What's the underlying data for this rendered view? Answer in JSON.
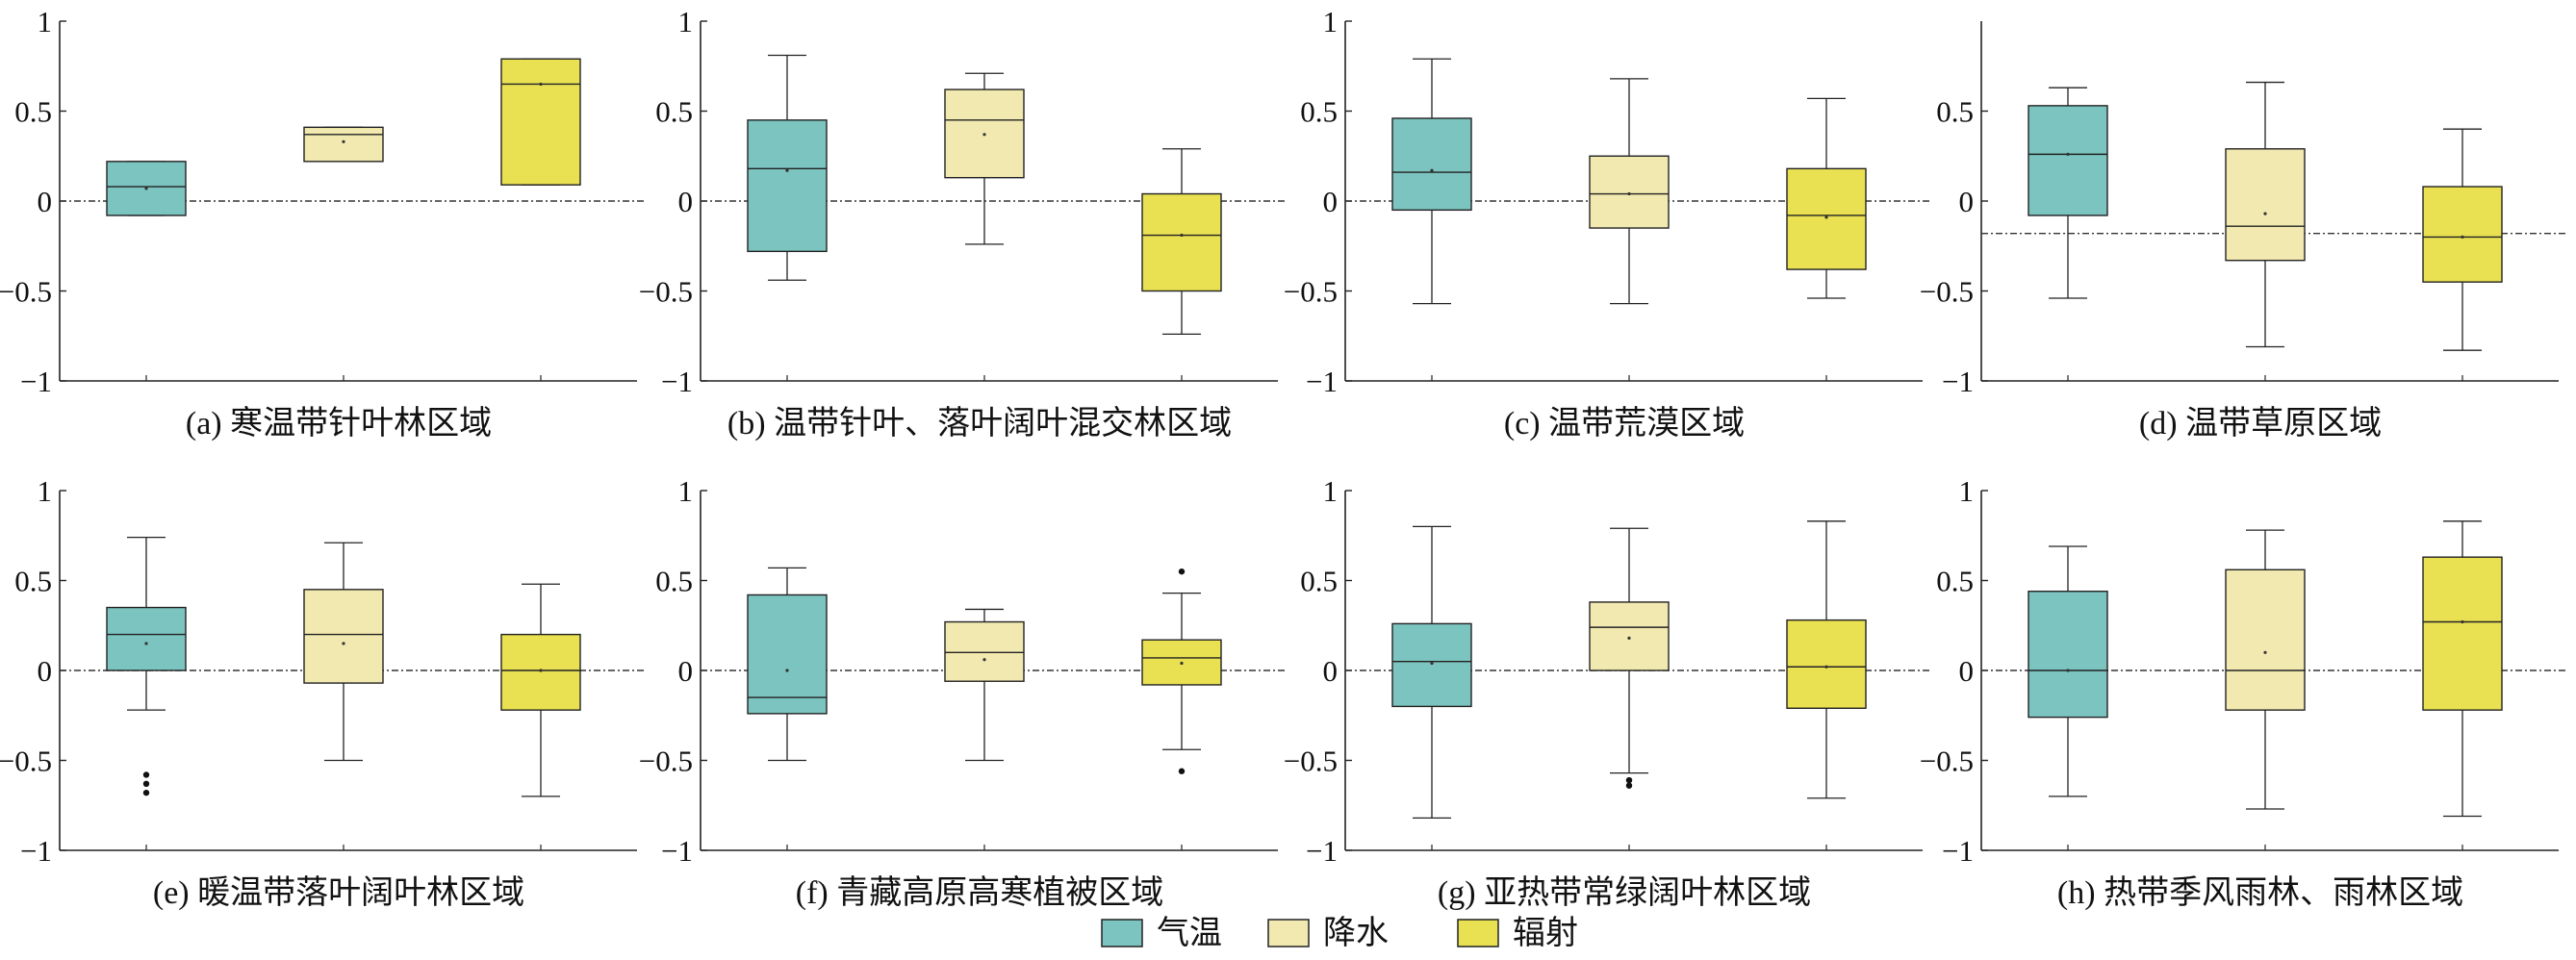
{
  "chart_data": [
    {
      "type": "box",
      "caption": "(a) 寒温带针叶林区域",
      "ylim": [
        -1,
        1
      ],
      "yticks": [
        1,
        0.5,
        0,
        -0.5,
        -1
      ],
      "ytick_labels": [
        "1",
        "0.5",
        "0",
        "−0.5",
        "−1"
      ],
      "reference_line": 0,
      "series": [
        {
          "name": "气温",
          "whisker_low": -0.08,
          "q1": -0.08,
          "median": 0.08,
          "q3": 0.22,
          "whisker_high": 0.22,
          "mean": 0.07,
          "outliers": []
        },
        {
          "name": "降水",
          "whisker_low": 0.22,
          "q1": 0.22,
          "median": 0.37,
          "q3": 0.41,
          "whisker_high": 0.41,
          "mean": 0.33,
          "outliers": []
        },
        {
          "name": "辐射",
          "whisker_low": 0.09,
          "q1": 0.09,
          "median": 0.65,
          "q3": 0.79,
          "whisker_high": 0.79,
          "mean": 0.65,
          "outliers": []
        }
      ]
    },
    {
      "type": "box",
      "caption": "(b) 温带针叶、落叶阔叶混交林区域",
      "ylim": [
        -1,
        1
      ],
      "yticks": [
        1,
        0.5,
        0,
        -0.5,
        -1
      ],
      "ytick_labels": [
        "1",
        "0.5",
        "0",
        "−0.5",
        "−1"
      ],
      "reference_line": 0,
      "series": [
        {
          "name": "气温",
          "whisker_low": -0.44,
          "q1": -0.28,
          "median": 0.18,
          "q3": 0.45,
          "whisker_high": 0.81,
          "mean": 0.17,
          "outliers": []
        },
        {
          "name": "降水",
          "whisker_low": -0.24,
          "q1": 0.13,
          "median": 0.45,
          "q3": 0.62,
          "whisker_high": 0.71,
          "mean": 0.37,
          "outliers": []
        },
        {
          "name": "辐射",
          "whisker_low": -0.74,
          "q1": -0.5,
          "median": -0.19,
          "q3": 0.04,
          "whisker_high": 0.29,
          "mean": -0.19,
          "outliers": []
        }
      ]
    },
    {
      "type": "box",
      "caption": "(c) 温带荒漠区域",
      "ylim": [
        -1,
        1
      ],
      "yticks": [
        1,
        0.5,
        0,
        -0.5,
        -1
      ],
      "ytick_labels": [
        "1",
        "0.5",
        "0",
        "−0.5",
        "−1"
      ],
      "reference_line": 0,
      "series": [
        {
          "name": "气温",
          "whisker_low": -0.57,
          "q1": -0.05,
          "median": 0.16,
          "q3": 0.46,
          "whisker_high": 0.79,
          "mean": 0.17,
          "outliers": []
        },
        {
          "name": "降水",
          "whisker_low": -0.57,
          "q1": -0.15,
          "median": 0.04,
          "q3": 0.25,
          "whisker_high": 0.68,
          "mean": 0.04,
          "outliers": []
        },
        {
          "name": "辐射",
          "whisker_low": -0.54,
          "q1": -0.38,
          "median": -0.08,
          "q3": 0.18,
          "whisker_high": 0.57,
          "mean": -0.09,
          "outliers": []
        }
      ]
    },
    {
      "type": "box",
      "caption": "(d) 温带草原区域",
      "ylim": [
        -1,
        1
      ],
      "yticks": [
        0.5,
        0,
        -0.5,
        -1
      ],
      "ytick_labels": [
        "0.5",
        "0",
        "−0.5",
        "−1"
      ],
      "reference_line": -0.18,
      "series": [
        {
          "name": "气温",
          "whisker_low": -0.54,
          "q1": -0.08,
          "median": 0.26,
          "q3": 0.53,
          "whisker_high": 0.63,
          "mean": 0.26,
          "outliers": []
        },
        {
          "name": "降水",
          "whisker_low": -0.81,
          "q1": -0.33,
          "median": -0.14,
          "q3": 0.29,
          "whisker_high": 0.66,
          "mean": -0.07,
          "outliers": []
        },
        {
          "name": "辐射",
          "whisker_low": -0.83,
          "q1": -0.45,
          "median": -0.2,
          "q3": 0.08,
          "whisker_high": 0.4,
          "mean": -0.2,
          "outliers": []
        }
      ]
    },
    {
      "type": "box",
      "caption": "(e) 暖温带落叶阔叶林区域",
      "ylim": [
        -1,
        1
      ],
      "yticks": [
        1,
        0.5,
        0,
        -0.5,
        -1
      ],
      "ytick_labels": [
        "1",
        "0.5",
        "0",
        "−0.5",
        "−1"
      ],
      "reference_line": 0,
      "series": [
        {
          "name": "气温",
          "whisker_low": -0.22,
          "q1": 0.0,
          "median": 0.2,
          "q3": 0.35,
          "whisker_high": 0.74,
          "mean": 0.15,
          "outliers": [
            -0.58,
            -0.63,
            -0.68
          ]
        },
        {
          "name": "降水",
          "whisker_low": -0.5,
          "q1": -0.07,
          "median": 0.2,
          "q3": 0.45,
          "whisker_high": 0.71,
          "mean": 0.15,
          "outliers": []
        },
        {
          "name": "辐射",
          "whisker_low": -0.7,
          "q1": -0.22,
          "median": 0.0,
          "q3": 0.2,
          "whisker_high": 0.48,
          "mean": 0.0,
          "outliers": []
        }
      ]
    },
    {
      "type": "box",
      "caption": "(f) 青藏高原高寒植被区域",
      "ylim": [
        -1,
        1
      ],
      "yticks": [
        1,
        0.5,
        0,
        -0.5,
        -1
      ],
      "ytick_labels": [
        "1",
        "0.5",
        "0",
        "−0.5",
        "−1"
      ],
      "reference_line": 0,
      "series": [
        {
          "name": "气温",
          "whisker_low": -0.5,
          "q1": -0.24,
          "median": -0.15,
          "q3": 0.42,
          "whisker_high": 0.57,
          "mean": 0.0,
          "outliers": []
        },
        {
          "name": "降水",
          "whisker_low": -0.5,
          "q1": -0.06,
          "median": 0.1,
          "q3": 0.27,
          "whisker_high": 0.34,
          "mean": 0.06,
          "outliers": []
        },
        {
          "name": "辐射",
          "whisker_low": -0.44,
          "q1": -0.08,
          "median": 0.07,
          "q3": 0.17,
          "whisker_high": 0.43,
          "mean": 0.04,
          "outliers": [
            0.55,
            -0.56
          ]
        }
      ]
    },
    {
      "type": "box",
      "caption": "(g) 亚热带常绿阔叶林区域",
      "ylim": [
        -1,
        1
      ],
      "yticks": [
        1,
        0.5,
        0,
        -0.5,
        -1
      ],
      "ytick_labels": [
        "1",
        "0.5",
        "0",
        "−0.5",
        "−1"
      ],
      "reference_line": 0,
      "series": [
        {
          "name": "气温",
          "whisker_low": -0.82,
          "q1": -0.2,
          "median": 0.05,
          "q3": 0.26,
          "whisker_high": 0.8,
          "mean": 0.04,
          "outliers": []
        },
        {
          "name": "降水",
          "whisker_low": -0.57,
          "q1": 0.0,
          "median": 0.24,
          "q3": 0.38,
          "whisker_high": 0.79,
          "mean": 0.18,
          "outliers": [
            -0.61,
            -0.64
          ]
        },
        {
          "name": "辐射",
          "whisker_low": -0.71,
          "q1": -0.21,
          "median": 0.02,
          "q3": 0.28,
          "whisker_high": 0.83,
          "mean": 0.02,
          "outliers": []
        }
      ]
    },
    {
      "type": "box",
      "caption": "(h) 热带季风雨林、雨林区域",
      "ylim": [
        -1,
        1
      ],
      "yticks": [
        1,
        0.5,
        0,
        -0.5,
        -1
      ],
      "ytick_labels": [
        "1",
        "0.5",
        "0",
        "−0.5",
        "−1"
      ],
      "reference_line": 0,
      "series": [
        {
          "name": "气温",
          "whisker_low": -0.7,
          "q1": -0.26,
          "median": 0.0,
          "q3": 0.44,
          "whisker_high": 0.69,
          "mean": 0.0,
          "outliers": []
        },
        {
          "name": "降水",
          "whisker_low": -0.77,
          "q1": -0.22,
          "median": 0.0,
          "q3": 0.56,
          "whisker_high": 0.78,
          "mean": 0.1,
          "outliers": []
        },
        {
          "name": "辐射",
          "whisker_low": -0.81,
          "q1": -0.22,
          "median": 0.27,
          "q3": 0.63,
          "whisker_high": 0.83,
          "mean": 0.27,
          "outliers": []
        }
      ]
    }
  ],
  "legend": [
    {
      "label": "气温",
      "color": "#7cc4c0"
    },
    {
      "label": "降水",
      "color": "#f2e9b0"
    },
    {
      "label": "辐射",
      "color": "#e9e052"
    }
  ]
}
